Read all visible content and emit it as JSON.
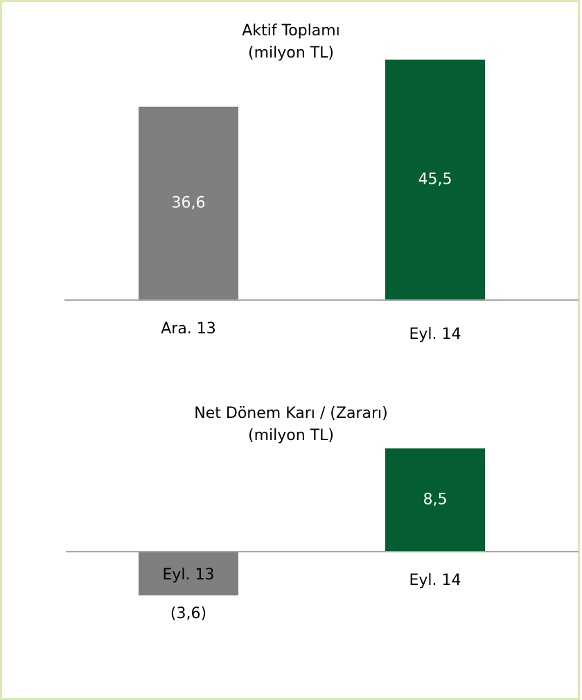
{
  "chart_data": [
    {
      "type": "bar",
      "title": "Aktif Toplamı",
      "subtitle": "(milyon TL)",
      "categories": [
        "Ara. 13",
        "Eyl. 14"
      ],
      "values": [
        36.6,
        45.5
      ],
      "value_labels": [
        "36,6",
        "45,5"
      ],
      "colors": [
        "#7f7f7f",
        "#045e32"
      ]
    },
    {
      "type": "bar",
      "title": "Net Dönem Karı / (Zararı)",
      "subtitle": "(milyon TL)",
      "categories": [
        "Eyl. 13",
        "Eyl. 14"
      ],
      "values": [
        -3.6,
        8.5
      ],
      "value_labels": [
        "(3,6)",
        "8,5"
      ],
      "colors": [
        "#7f7f7f",
        "#045e32"
      ]
    }
  ]
}
